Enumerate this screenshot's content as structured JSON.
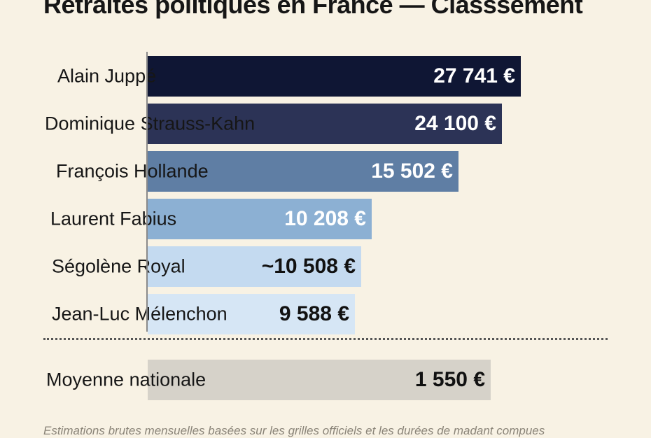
{
  "chart_data": {
    "type": "bar",
    "orientation": "horizontal",
    "title": "Retraites politiques en France — Classsement",
    "categories": [
      "Alain Juppé",
      "Dominique Strauss-Kahn",
      "François Hollande",
      "Laurent Fabius",
      "Ségolène Royal",
      "Jean-Luc Mélenchon"
    ],
    "values": [
      27741,
      24100,
      15502,
      10208,
      10508,
      9588
    ],
    "value_labels": [
      "27 741 €",
      "24 100 €",
      "15 502 €",
      "10 208 €",
      "~10 508 €",
      "9 588 €"
    ],
    "bar_colors": [
      "#0f1634",
      "#2c3356",
      "#5f7ea4",
      "#8cb0d3",
      "#c4daf0",
      "#d6e6f5"
    ],
    "value_colors": [
      "#ffffff",
      "#ffffff",
      "#ffffff",
      "#ffffff",
      "#111111",
      "#111111"
    ],
    "reference": {
      "label": "Moyenne nationale",
      "value": 1550,
      "value_label": "1 550 €",
      "color": "#d6d2c9"
    },
    "note": "Estimations brutes mensuelles basées sur les grilles officiels et les durées de madant compues"
  }
}
